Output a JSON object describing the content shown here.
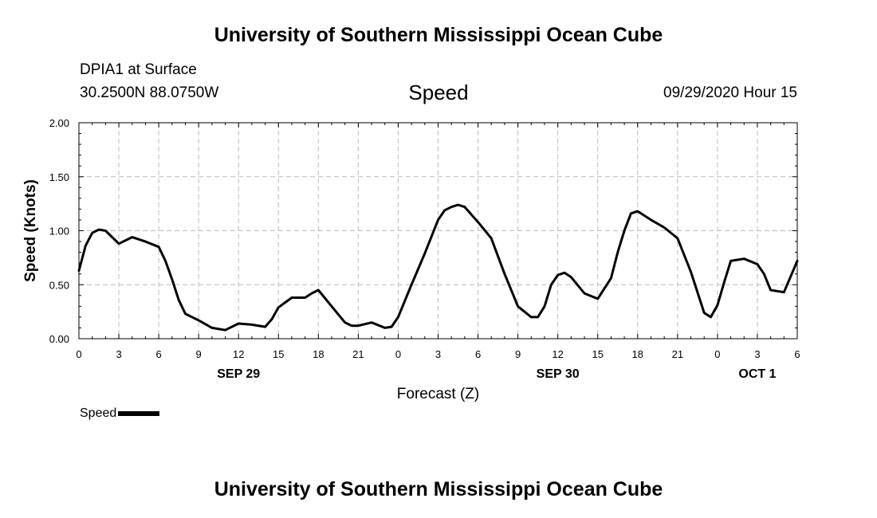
{
  "header": {
    "title": "University of Southern Mississippi Ocean Cube",
    "station": "DPIA1 at Surface",
    "coordinates": "30.2500N 88.0750W",
    "chart_name": "Speed",
    "run_time": "09/29/2020 Hour 15"
  },
  "footer": {
    "title": "University of Southern Mississippi Ocean Cube"
  },
  "legend": {
    "label": "Speed"
  },
  "chart_data": {
    "type": "line",
    "title": "Speed",
    "xlabel": "Forecast (Z)",
    "ylabel": "Speed (Knots)",
    "x_unit": "hours from 2020-09-29 00Z",
    "xlim": [
      0,
      54
    ],
    "ylim": [
      0,
      2.0
    ],
    "yticks": [
      0.0,
      0.5,
      1.0,
      1.5,
      2.0
    ],
    "ytick_labels": [
      "0.00",
      "0.50",
      "1.00",
      "1.50",
      "2.00"
    ],
    "xticks": [
      0,
      3,
      6,
      9,
      12,
      15,
      18,
      21,
      24,
      27,
      30,
      33,
      36,
      39,
      42,
      45,
      48,
      51,
      54
    ],
    "xtick_labels": [
      "0",
      "3",
      "6",
      "9",
      "12",
      "15",
      "18",
      "21",
      "0",
      "3",
      "6",
      "9",
      "12",
      "15",
      "18",
      "21",
      "0",
      "3",
      "6"
    ],
    "date_labels": [
      {
        "x": 12,
        "label": "SEP 29"
      },
      {
        "x": 36,
        "label": "SEP 30"
      },
      {
        "x": 51,
        "label": "OCT 1"
      }
    ],
    "grid": true,
    "line_color": "#000000",
    "series": [
      {
        "name": "Speed",
        "x": [
          0,
          0.5,
          1,
          1.5,
          2,
          3,
          4,
          5,
          6,
          6.5,
          7,
          7.5,
          8,
          9,
          10,
          11,
          12,
          13,
          14,
          14.5,
          15,
          16,
          17,
          17.5,
          18,
          19,
          20,
          20.5,
          21,
          22,
          23,
          23.5,
          24,
          25,
          26,
          27,
          27.5,
          28,
          28.5,
          29,
          30,
          31,
          32,
          33,
          34,
          34.5,
          35,
          35.5,
          36,
          36.5,
          37,
          38,
          39,
          40,
          40.5,
          41,
          41.5,
          42,
          43,
          44,
          45,
          46,
          47,
          47.5,
          48,
          48.5,
          49,
          50,
          51,
          51.5,
          52,
          53,
          54
        ],
        "y": [
          0.63,
          0.86,
          0.98,
          1.01,
          1.0,
          0.88,
          0.94,
          0.9,
          0.85,
          0.72,
          0.55,
          0.36,
          0.23,
          0.17,
          0.1,
          0.08,
          0.14,
          0.13,
          0.11,
          0.18,
          0.29,
          0.38,
          0.38,
          0.42,
          0.45,
          0.3,
          0.15,
          0.12,
          0.12,
          0.15,
          0.1,
          0.11,
          0.2,
          0.5,
          0.79,
          1.1,
          1.19,
          1.22,
          1.24,
          1.22,
          1.08,
          0.93,
          0.6,
          0.3,
          0.2,
          0.2,
          0.3,
          0.5,
          0.59,
          0.61,
          0.57,
          0.42,
          0.37,
          0.56,
          0.8,
          1.0,
          1.16,
          1.18,
          1.1,
          1.03,
          0.93,
          0.62,
          0.24,
          0.2,
          0.31,
          0.52,
          0.72,
          0.74,
          0.69,
          0.6,
          0.45,
          0.43,
          0.72
        ]
      }
    ]
  }
}
